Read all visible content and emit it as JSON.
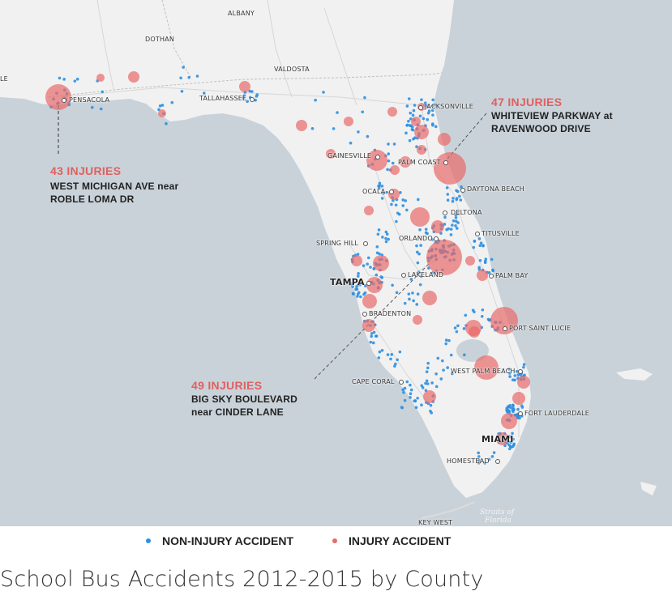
{
  "title": "School Bus Accidents 2012-2015 by County",
  "colors": {
    "water": "#c9d2d9",
    "land": "#f1f1f1",
    "non_injury": "#2d8fe0",
    "injury": "#e86a6a",
    "injury_label": "#e06060"
  },
  "legend": [
    {
      "label": "NON-INJURY ACCIDENT",
      "color": "#2d8fe0"
    },
    {
      "label": "INJURY ACCIDENT",
      "color": "#e86a6a"
    }
  ],
  "cities": [
    {
      "name": "ALBANY",
      "size": "small"
    },
    {
      "name": "DOTHAN",
      "size": "small"
    },
    {
      "name": "VALDOSTA",
      "size": "small"
    },
    {
      "name": "PENSACOLA",
      "size": "small"
    },
    {
      "name": "TALLAHASSEE",
      "size": "small"
    },
    {
      "name": "JACKSONVILLE",
      "size": "small"
    },
    {
      "name": "GAINESVILLE",
      "size": "small"
    },
    {
      "name": "PALM COAST",
      "size": "small"
    },
    {
      "name": "DAYTONA BEACH",
      "size": "small"
    },
    {
      "name": "OCALA",
      "size": "small"
    },
    {
      "name": "DELTONA",
      "size": "small"
    },
    {
      "name": "SPRING HILL",
      "size": "small"
    },
    {
      "name": "ORLANDO",
      "size": "small"
    },
    {
      "name": "TITUSVILLE",
      "size": "small"
    },
    {
      "name": "TAMPA",
      "size": "big"
    },
    {
      "name": "LAKELAND",
      "size": "small"
    },
    {
      "name": "PALM BAY",
      "size": "small"
    },
    {
      "name": "BRADENTON",
      "size": "small"
    },
    {
      "name": "PORT SAINT LUCIE",
      "size": "small"
    },
    {
      "name": "WEST PALM BEACH",
      "size": "small"
    },
    {
      "name": "CAPE CORAL",
      "size": "small"
    },
    {
      "name": "FORT LAUDERDALE",
      "size": "small"
    },
    {
      "name": "MIAMI",
      "size": "big"
    },
    {
      "name": "HOMESTEAD",
      "size": "small"
    },
    {
      "name": "KEY WEST",
      "size": "small"
    },
    {
      "name": "LE",
      "size": "small"
    }
  ],
  "water_label": [
    "Straits of",
    "Florida"
  ],
  "annotations": [
    {
      "number": "43 INJURIES",
      "lines": [
        "WEST MICHIGAN AVE near",
        "ROBLE LOMA DR"
      ]
    },
    {
      "number": "47 INJURIES",
      "lines": [
        "WHITEVIEW PARKWAY  at",
        "RAVENWOOD DRIVE"
      ]
    },
    {
      "number": "49 INJURIES",
      "lines": [
        "BIG SKY BOULEVARD",
        "near CINDER LANE"
      ]
    }
  ]
}
